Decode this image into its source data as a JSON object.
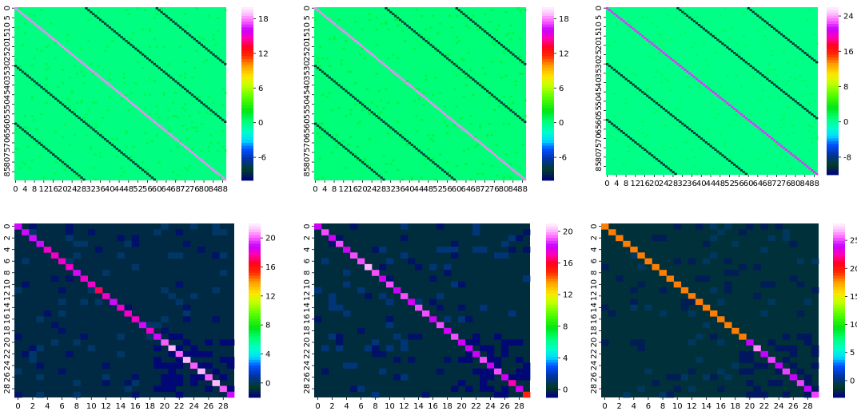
{
  "chart_data": [
    {
      "type": "heatmap",
      "n": 90,
      "pattern": "cyclic",
      "cmap": "gist_ncar",
      "vmin": -10,
      "vmax": 20,
      "base": 0,
      "diag": 18,
      "band": -8,
      "shift": 30,
      "xticks": [
        "0",
        "4",
        "8",
        "12",
        "16",
        "20",
        "24",
        "28",
        "32",
        "36",
        "40",
        "44",
        "48",
        "52",
        "56",
        "60",
        "64",
        "68",
        "72",
        "76",
        "80",
        "84",
        "88"
      ],
      "yticks": [
        "0",
        "5",
        "10",
        "15",
        "20",
        "25",
        "30",
        "35",
        "40",
        "45",
        "50",
        "55",
        "60",
        "65",
        "70",
        "75",
        "80",
        "85"
      ],
      "colorbar": {
        "ticks": [
          -6,
          0,
          6,
          12,
          18
        ],
        "labels": [
          "-6",
          "0",
          "6",
          "12",
          "18"
        ]
      }
    },
    {
      "type": "heatmap",
      "n": 90,
      "pattern": "cyclic",
      "cmap": "gist_ncar",
      "vmin": -10,
      "vmax": 20,
      "base": 0.2,
      "diag": 18,
      "band": -8,
      "shift": 30,
      "xticks": [
        "0",
        "4",
        "8",
        "12",
        "16",
        "20",
        "24",
        "28",
        "32",
        "36",
        "40",
        "44",
        "48",
        "52",
        "56",
        "60",
        "64",
        "68",
        "72",
        "76",
        "80",
        "84",
        "88"
      ],
      "yticks": [
        "0",
        "5",
        "10",
        "15",
        "20",
        "25",
        "30",
        "35",
        "40",
        "45",
        "50",
        "55",
        "60",
        "65",
        "70",
        "75",
        "80",
        "85"
      ],
      "colorbar": {
        "ticks": [
          -6,
          0,
          6,
          12,
          18
        ],
        "labels": [
          "-6",
          "0",
          "6",
          "12",
          "18"
        ]
      }
    },
    {
      "type": "heatmap",
      "n": 90,
      "pattern": "cyclic",
      "cmap": "gist_ncar",
      "vmin": -12,
      "vmax": 26,
      "base": 0.5,
      "diag": 22,
      "band": -10,
      "shift": 30,
      "xticks": [
        "0",
        "4",
        "8",
        "12",
        "16",
        "20",
        "24",
        "28",
        "32",
        "36",
        "40",
        "44",
        "48",
        "52",
        "56",
        "60",
        "64",
        "68",
        "72",
        "76",
        "80",
        "84",
        "88"
      ],
      "yticks": [
        "0",
        "5",
        "10",
        "15",
        "20",
        "25",
        "30",
        "35",
        "40",
        "45",
        "50",
        "55",
        "60",
        "65",
        "70",
        "75",
        "80",
        "85"
      ],
      "colorbar": {
        "ticks": [
          -8,
          0,
          8,
          16,
          24
        ],
        "labels": [
          "-8",
          "0",
          "8",
          "16",
          "24"
        ]
      }
    },
    {
      "type": "heatmap",
      "n": 30,
      "pattern": "diagonal",
      "cmap": "gist_ncar",
      "vmin": -2,
      "vmax": 22,
      "base": -1,
      "diag": [
        19,
        19,
        19,
        19,
        18,
        18,
        18,
        18,
        19,
        18,
        18,
        17,
        18,
        19,
        18,
        18,
        18,
        19,
        18,
        19,
        20,
        21,
        20,
        21,
        20,
        21,
        20,
        21,
        20,
        19
      ],
      "xticks": [
        "0",
        "2",
        "4",
        "6",
        "8",
        "10",
        "12",
        "14",
        "16",
        "18",
        "20",
        "22",
        "24",
        "26",
        "28"
      ],
      "yticks": [
        "0",
        "2",
        "4",
        "6",
        "8",
        "10",
        "12",
        "14",
        "16",
        "18",
        "20",
        "22",
        "24",
        "26",
        "28"
      ],
      "colorbar": {
        "ticks": [
          0,
          4,
          8,
          12,
          16,
          20
        ],
        "labels": [
          "0",
          "4",
          "8",
          "12",
          "16",
          "20"
        ]
      }
    },
    {
      "type": "heatmap",
      "n": 30,
      "pattern": "diagonal",
      "cmap": "gist_ncar",
      "vmin": -1,
      "vmax": 21,
      "base": 0,
      "diag": [
        18,
        19,
        18,
        19,
        18,
        19,
        19,
        20,
        19,
        18,
        19,
        18,
        19,
        18,
        19,
        19,
        18,
        19,
        18,
        19,
        18,
        18,
        18,
        19,
        18,
        19,
        18,
        17,
        18,
        15
      ],
      "xticks": [
        "0",
        "2",
        "4",
        "6",
        "8",
        "10",
        "12",
        "14",
        "16",
        "18",
        "20",
        "22",
        "24",
        "26",
        "28"
      ],
      "yticks": [
        "0",
        "2",
        "4",
        "6",
        "8",
        "10",
        "12",
        "14",
        "16",
        "18",
        "20",
        "22",
        "24",
        "26",
        "28"
      ],
      "colorbar": {
        "ticks": [
          0,
          4,
          8,
          12,
          16,
          20
        ],
        "labels": [
          "0",
          "4",
          "8",
          "12",
          "16",
          "20"
        ]
      }
    },
    {
      "type": "heatmap",
      "n": 30,
      "pattern": "diagonal",
      "cmap": "gist_ncar",
      "vmin": -3,
      "vmax": 28,
      "base": -1.5,
      "diag": [
        18,
        18,
        18,
        18,
        18,
        18,
        18,
        18,
        18,
        18,
        18,
        18,
        18,
        18,
        18,
        18,
        18,
        18,
        18,
        18,
        24,
        26,
        24,
        25,
        24,
        25,
        24,
        25,
        24,
        25
      ],
      "xticks": [
        "0",
        "2",
        "4",
        "6",
        "8",
        "10",
        "12",
        "14",
        "16",
        "18",
        "20",
        "22",
        "24",
        "26",
        "28"
      ],
      "yticks": [
        "0",
        "2",
        "4",
        "6",
        "8",
        "10",
        "12",
        "14",
        "16",
        "18",
        "20",
        "22",
        "24",
        "26",
        "28"
      ],
      "colorbar": {
        "ticks": [
          0,
          5,
          10,
          15,
          20,
          25
        ],
        "labels": [
          "0",
          "5",
          "10",
          "15",
          "20",
          "25"
        ]
      }
    }
  ]
}
